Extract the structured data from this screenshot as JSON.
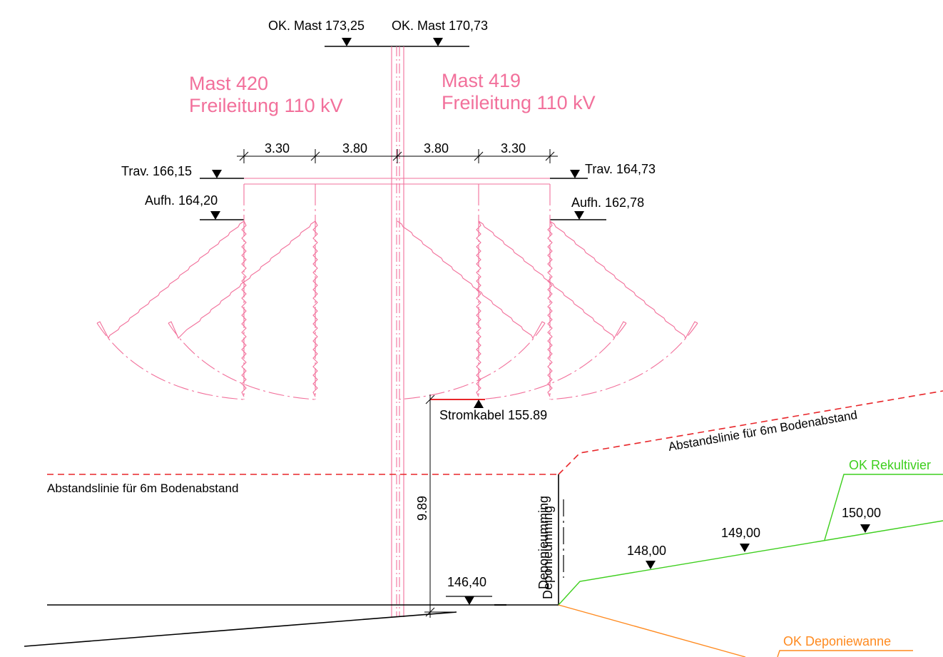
{
  "colors": {
    "mast": "#f2709b",
    "ground": "#000000",
    "clearance": "#e8262a",
    "recultivation": "#3ecf1e",
    "landfill_liner": "#ff8a1f",
    "text": "#000000"
  },
  "top_levels": {
    "mast_420": "OK. Mast 173,25",
    "mast_419": "OK. Mast 170,73"
  },
  "masts": {
    "mast_420": {
      "name": "Mast 420",
      "line": "Freileitung 110 kV"
    },
    "mast_419": {
      "name": "Mast 419",
      "line": "Freileitung 110 kV"
    }
  },
  "crossarm_dimensions": [
    "3.30",
    "3.80",
    "3.80",
    "3.30"
  ],
  "crossarm_levels": {
    "left": "Trav. 166,15",
    "right": "Trav. 164,73"
  },
  "suspension_levels": {
    "left": "Aufh. 164,20",
    "right": "Aufh. 162,78"
  },
  "cable": {
    "label": "Stromkabel 155.89"
  },
  "clearance": {
    "label_left": "Abstandslinie für 6m Bodenabstand",
    "label_right": "Abstandslinie für 6m Bodenabstand",
    "vertical_dimension": "9.89"
  },
  "landfill": {
    "fence_label": "Deponieumming",
    "fence_label_overlap": "Deponieumming"
  },
  "ground_levels": {
    "existing": "146,40",
    "level_148": "148,00",
    "level_149": "149,00",
    "level_150": "150,00"
  },
  "recultivation": {
    "label": "OK Rekultivier"
  },
  "liner": {
    "label": "OK Deponiewanne"
  }
}
